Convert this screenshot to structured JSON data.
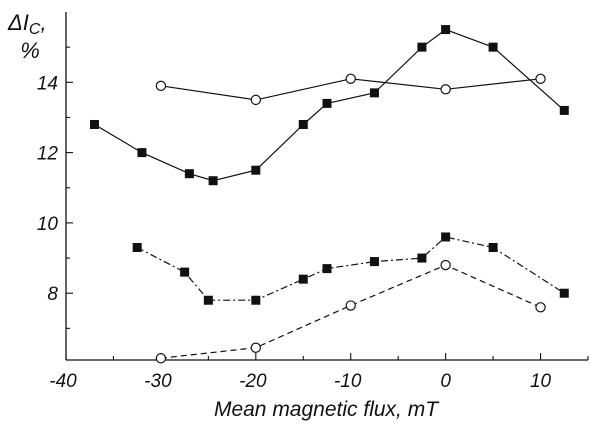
{
  "chart_data": {
    "type": "line",
    "xlabel": "Mean magnetic flux, mT",
    "ylabel": {
      "symbol": "ΔI",
      "subscript": "C",
      "suffix": ",",
      "unit": "%"
    },
    "xlim": [
      -40,
      15
    ],
    "ylim": [
      6.1,
      16
    ],
    "xticks": [
      -40,
      -30,
      -20,
      -10,
      0,
      10
    ],
    "yticks": [
      8,
      10,
      12,
      14
    ],
    "grid": false,
    "legend": "none",
    "series": [
      {
        "marker": "square-filled",
        "line": "solid",
        "x": [
          -37,
          -32,
          -27,
          -24.5,
          -20,
          -15,
          -12.5,
          -7.5,
          -2.5,
          0,
          5,
          12.5
        ],
        "y": [
          12.8,
          12.0,
          11.4,
          11.2,
          11.5,
          12.8,
          13.4,
          13.7,
          15.0,
          15.5,
          15.0,
          13.2
        ]
      },
      {
        "marker": "circle-open",
        "line": "solid",
        "x": [
          -30,
          -20,
          -10,
          0,
          10
        ],
        "y": [
          13.9,
          13.5,
          14.1,
          13.8,
          14.1
        ]
      },
      {
        "marker": "square-filled",
        "line": "dash-dot",
        "x": [
          -32.5,
          -27.5,
          -25,
          -20,
          -15,
          -12.5,
          -7.5,
          -2.5,
          0,
          5,
          12.5
        ],
        "y": [
          9.3,
          8.6,
          7.8,
          7.8,
          8.4,
          8.7,
          8.9,
          9.0,
          9.6,
          9.3,
          8.0
        ]
      },
      {
        "marker": "circle-open",
        "line": "dashed",
        "x": [
          -30,
          -20,
          -10,
          0,
          10
        ],
        "y": [
          6.15,
          6.45,
          7.65,
          8.8,
          7.6
        ]
      }
    ]
  }
}
